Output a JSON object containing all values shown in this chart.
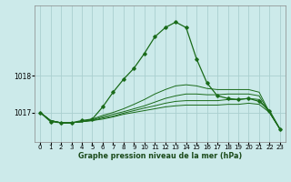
{
  "title": "Graphe pression niveau de la mer (hPa)",
  "bg_color": "#cceaea",
  "grid_color": "#aacfcf",
  "line_color": "#1a6b1a",
  "yticks": [
    1017,
    1018
  ],
  "ylim": [
    1016.2,
    1019.9
  ],
  "xlim": [
    -0.5,
    23.5
  ],
  "xticks": [
    0,
    1,
    2,
    3,
    4,
    5,
    6,
    7,
    8,
    9,
    10,
    11,
    12,
    13,
    14,
    15,
    16,
    17,
    18,
    19,
    20,
    21,
    22,
    23
  ],
  "main_series": [
    1017.0,
    1016.75,
    1016.72,
    1016.72,
    1016.78,
    1016.82,
    1017.15,
    1017.55,
    1017.9,
    1018.2,
    1018.6,
    1019.05,
    1019.3,
    1019.45,
    1019.3,
    1018.45,
    1017.8,
    1017.45,
    1017.38,
    1017.35,
    1017.38,
    1017.3,
    1017.05,
    1016.55
  ],
  "flat_series": [
    [
      1017.0,
      1016.78,
      1016.72,
      1016.72,
      1016.75,
      1016.78,
      1016.82,
      1016.88,
      1016.95,
      1017.0,
      1017.05,
      1017.1,
      1017.15,
      1017.18,
      1017.2,
      1017.2,
      1017.2,
      1017.2,
      1017.22,
      1017.22,
      1017.25,
      1017.22,
      1017.0,
      1016.55
    ],
    [
      1017.0,
      1016.78,
      1016.72,
      1016.72,
      1016.75,
      1016.78,
      1016.85,
      1016.9,
      1016.98,
      1017.05,
      1017.12,
      1017.18,
      1017.25,
      1017.3,
      1017.32,
      1017.32,
      1017.32,
      1017.32,
      1017.35,
      1017.35,
      1017.38,
      1017.35,
      1017.0,
      1016.55
    ],
    [
      1017.0,
      1016.78,
      1016.72,
      1016.72,
      1016.75,
      1016.8,
      1016.88,
      1016.95,
      1017.02,
      1017.1,
      1017.18,
      1017.28,
      1017.38,
      1017.45,
      1017.5,
      1017.5,
      1017.48,
      1017.48,
      1017.5,
      1017.5,
      1017.5,
      1017.45,
      1017.0,
      1016.55
    ],
    [
      1017.0,
      1016.78,
      1016.72,
      1016.72,
      1016.75,
      1016.82,
      1016.92,
      1017.0,
      1017.1,
      1017.22,
      1017.35,
      1017.5,
      1017.62,
      1017.72,
      1017.75,
      1017.72,
      1017.65,
      1017.62,
      1017.62,
      1017.62,
      1017.62,
      1017.55,
      1017.0,
      1016.55
    ]
  ]
}
